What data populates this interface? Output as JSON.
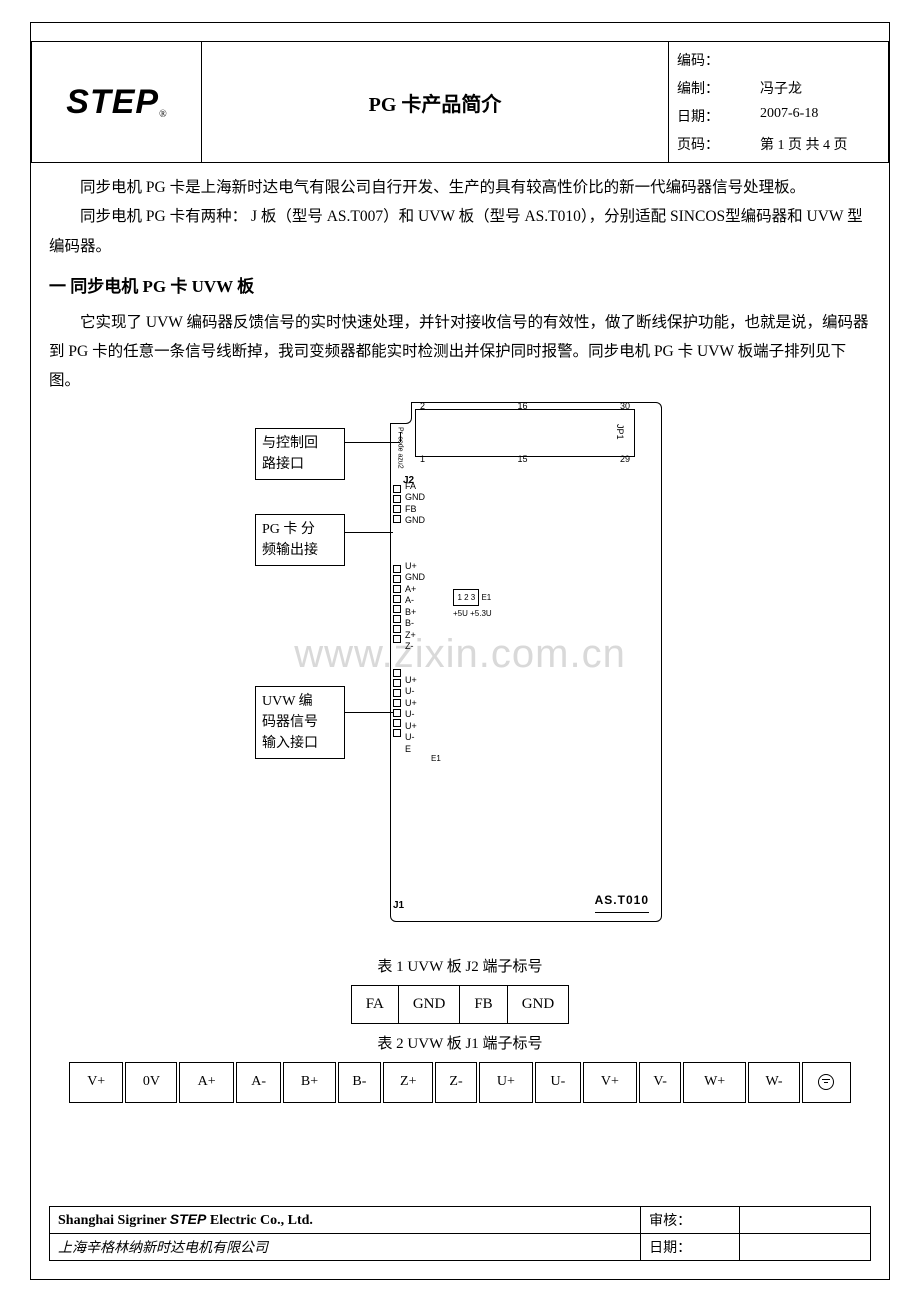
{
  "header": {
    "logo": "STEP",
    "logo_reg": "®",
    "title": "PG 卡产品简介",
    "meta": {
      "code_key": "编码：",
      "code_val": "",
      "author_key": "编制：",
      "author_val": "冯子龙",
      "date_key": "日期：",
      "date_val": "2007-6-18",
      "page_key": "页码：",
      "page_val": "第 1 页 共 4 页"
    }
  },
  "body": {
    "p1": "同步电机 PG 卡是上海新时达电气有限公司自行开发、生产的具有较高性价比的新一代编码器信号处理板。",
    "p2": "同步电机 PG 卡有两种：  J 板（型号 AS.T007）和 UVW 板（型号 AS.T010），分别适配 SINCOS型编码器和 UVW 型编码器。",
    "h1": "一  同步电机 PG 卡 UVW 板",
    "p3": "它实现了 UVW 编码器反馈信号的实时快速处理，并针对接收信号的有效性，做了断线保护功能，也就是说，编码器到 PG 卡的任意一条信号线断掉，我司变频器都能实时检测出并保护同时报警。同步电机 PG 卡 UVW 板端子排列见下图。"
  },
  "diagram": {
    "callout1": "与控制回\n路接口",
    "callout2": "PG 卡 分\n频输出接",
    "callout3": "UVW  编\n码器信号\n输入接口",
    "jp1_top": [
      "2",
      "16",
      "30"
    ],
    "jp1_bot": [
      "1",
      "15",
      "29"
    ],
    "jp1_label": "JP1",
    "j2": "J2",
    "j1": "J1",
    "j2_pins": [
      "FA",
      "GND",
      "FB",
      "GND"
    ],
    "j1_pins": [
      "U+",
      "GND",
      "A+",
      "A-",
      "B+",
      "B-",
      "Z+",
      "Z-",
      "",
      "U+",
      "U-",
      "U+",
      "U-",
      "U+",
      "U-",
      "E"
    ],
    "e1": {
      "nums": "1 2 3",
      "label": "E1",
      "volts": "+5U  +5.3U"
    },
    "side_label": "Pr-code azu2",
    "e1_bottom": "E1",
    "partno": "AS.T010",
    "watermark": "www.zixin.com.cn"
  },
  "tables": {
    "t1_caption": "表 1 UVW 板 J2 端子标号",
    "t1": [
      "FA",
      "GND",
      "FB",
      "GND"
    ],
    "t2_caption": "表 2 UVW 板 J1 端子标号",
    "t2": [
      "V+",
      "0V",
      "A+",
      "A-",
      "B+",
      "B-",
      "Z+",
      "Z-",
      "U+",
      "U-",
      "V+",
      "V-",
      "W+",
      "W-",
      "GND_SYM"
    ]
  },
  "footer": {
    "co_en_pre": "Shanghai Sigriner ",
    "co_en_step": "STEP",
    "co_en_post": " Electric Co., Ltd.",
    "co_cn": "上海辛格林纳新时达电机有限公司",
    "review_key": "审核：",
    "review_val": "",
    "fdate_key": "日期：",
    "fdate_val": ""
  }
}
